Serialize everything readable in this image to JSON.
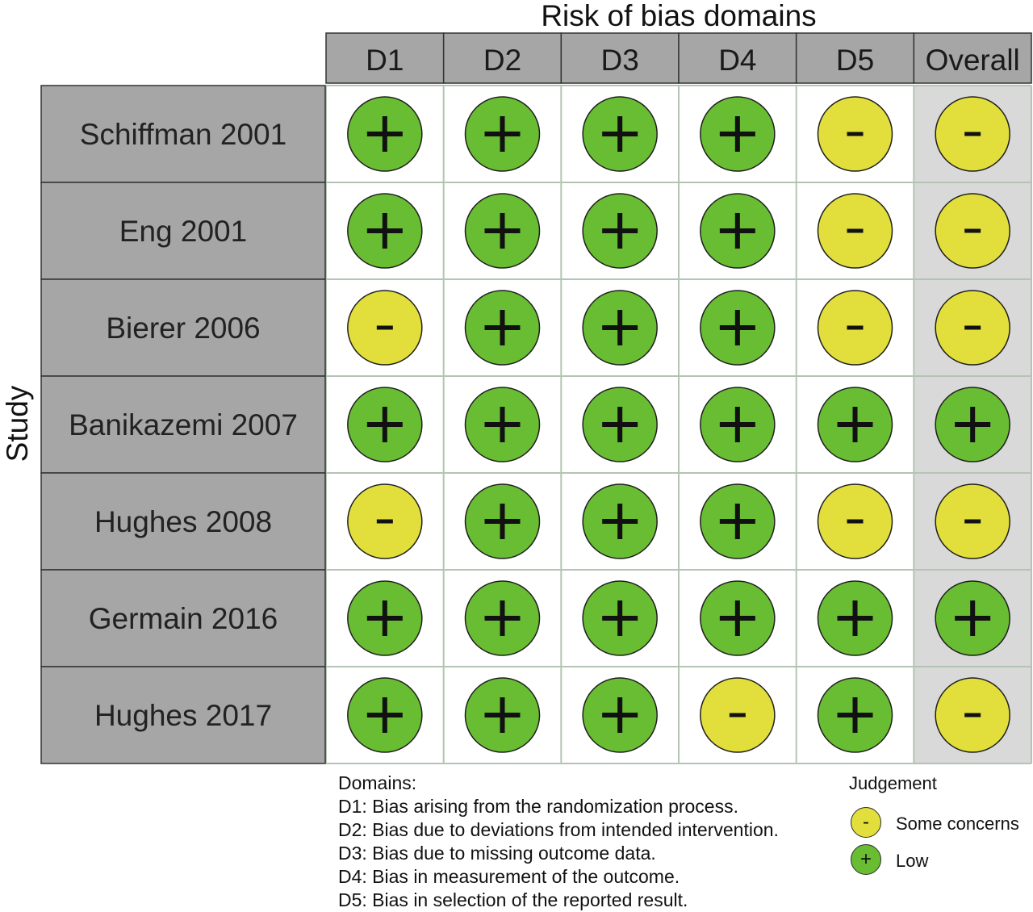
{
  "chart_data": {
    "type": "table",
    "title": "Risk of bias domains",
    "ylabel": "Study",
    "columns": [
      "D1",
      "D2",
      "D3",
      "D4",
      "D5",
      "Overall"
    ],
    "rows": [
      {
        "study": "Schiffman 2001",
        "judgements": [
          "+",
          "+",
          "+",
          "+",
          "-",
          "-"
        ]
      },
      {
        "study": "Eng 2001",
        "judgements": [
          "+",
          "+",
          "+",
          "+",
          "-",
          "-"
        ]
      },
      {
        "study": "Bierer 2006",
        "judgements": [
          "-",
          "+",
          "+",
          "+",
          "-",
          "-"
        ]
      },
      {
        "study": "Banikazemi 2007",
        "judgements": [
          "+",
          "+",
          "+",
          "+",
          "+",
          "+"
        ]
      },
      {
        "study": "Hughes 2008",
        "judgements": [
          "-",
          "+",
          "+",
          "+",
          "-",
          "-"
        ]
      },
      {
        "study": "Germain 2016",
        "judgements": [
          "+",
          "+",
          "+",
          "+",
          "+",
          "+"
        ]
      },
      {
        "study": "Hughes 2017",
        "judgements": [
          "+",
          "+",
          "+",
          "-",
          "+",
          "-"
        ]
      }
    ],
    "symbol_colors": {
      "+": "#68bd32",
      "-": "#e2df3c"
    },
    "domains_legend": {
      "heading": "Domains:",
      "items": [
        "D1: Bias arising from the randomization process.",
        "D2: Bias due to deviations from intended intervention.",
        "D3: Bias due to missing outcome data.",
        "D4: Bias in measurement of the outcome.",
        "D5: Bias in selection of the reported result."
      ]
    },
    "judgement_legend": {
      "title": "Judgement",
      "items": [
        {
          "symbol": "-",
          "label": "Some concerns",
          "color": "#e2df3c"
        },
        {
          "symbol": "+",
          "label": "Low",
          "color": "#68bd32"
        }
      ]
    }
  },
  "colors": {
    "header_fill": "#a6a6a6",
    "study_fill": "#a6a6a6",
    "overall_fill": "#d9d9d9",
    "grid_line": "#b4c4b4"
  }
}
